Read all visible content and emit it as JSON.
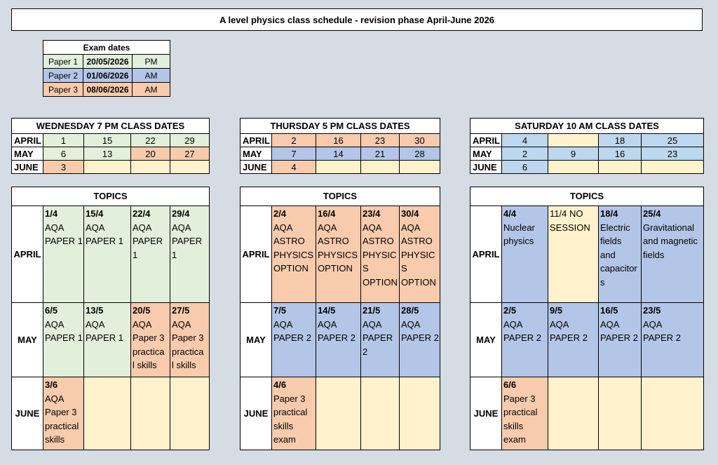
{
  "title": "A level physics class schedule - revision phase April-June 2026",
  "colors": {
    "green": "#e2efda",
    "orange": "#f8cbad",
    "blue": "#b4c6e7",
    "light_blue": "#bdd7ee",
    "yellow": "#fff2cc"
  },
  "exam": {
    "header": "Exam dates",
    "rows": [
      {
        "paper": "Paper 1",
        "date": "20/05/2026",
        "time": "PM"
      },
      {
        "paper": "Paper 2",
        "date": "01/06/2026",
        "time": "AM"
      },
      {
        "paper": "Paper 3",
        "date": "08/06/2026",
        "time": "AM"
      }
    ]
  },
  "wed": {
    "header": "WEDNESDAY 7 PM CLASS DATES",
    "months": [
      "APRIL",
      "MAY",
      "JUNE"
    ],
    "rows": [
      [
        "1",
        "15",
        "22",
        "29"
      ],
      [
        "6",
        "13",
        "20",
        "27"
      ],
      [
        "3",
        "",
        "",
        ""
      ]
    ],
    "topics_header": "TOPICS",
    "topics": [
      [
        {
          "d": "1/4",
          "t": "AQA\nPAPER 1"
        },
        {
          "d": "15/4",
          "t": "AQA\nPAPER 1"
        },
        {
          "d": "22/4",
          "t": "AQA\nPAPER 1"
        },
        {
          "d": "29/4",
          "t": "AQA\nPAPER 1"
        }
      ],
      [
        {
          "d": "6/5",
          "t": "AQA\nPAPER 1"
        },
        {
          "d": "13/5",
          "t": "AQA\nPAPER 1"
        },
        {
          "d": "20/5",
          "t": "AQA\nPaper 3\npractica\nl skills"
        },
        {
          "d": "27/5",
          "t": "AQA\nPaper 3\npractica\nl skills"
        }
      ],
      [
        {
          "d": "3/6",
          "t": "AQA\nPaper 3\npractical\nskills"
        },
        {
          "d": "",
          "t": ""
        },
        {
          "d": "",
          "t": ""
        },
        {
          "d": "",
          "t": ""
        }
      ]
    ]
  },
  "thu": {
    "header": "THURSDAY 5 PM CLASS DATES",
    "months": [
      "APRIL",
      "MAY",
      "JUNE"
    ],
    "rows": [
      [
        "2",
        "16",
        "23",
        "30"
      ],
      [
        "7",
        "14",
        "21",
        "28"
      ],
      [
        "4",
        "",
        "",
        ""
      ]
    ],
    "topics_header": "TOPICS",
    "topics": [
      [
        {
          "d": "2/4",
          "t": "AQA\nASTRO\nPHYSICS\nOPTION"
        },
        {
          "d": "16/4",
          "t": "AQA\nASTRO\nPHYSICS\nOPTION"
        },
        {
          "d": "23/4",
          "t": "AQA\nASTRO\nPHYSICS\nOPTION"
        },
        {
          "d": "30/4",
          "t": "AQA\nASTRO\nPHYSICS\nOPTION"
        }
      ],
      [
        {
          "d": "7/5",
          "t": "AQA\nPAPER 2"
        },
        {
          "d": "14/5",
          "t": "AQA\nPAPER 2"
        },
        {
          "d": "21/5",
          "t": "AQA\nPAPER 2"
        },
        {
          "d": "28/5",
          "t": "AQA\nPAPER 2"
        }
      ],
      [
        {
          "d": "4/6",
          "t": "Paper 3\npractical\nskills\nexam"
        },
        {
          "d": "",
          "t": ""
        },
        {
          "d": "",
          "t": ""
        },
        {
          "d": "",
          "t": ""
        }
      ]
    ]
  },
  "sat": {
    "header": "SATURDAY 10 AM CLASS DATES",
    "months": [
      "APRIL",
      "MAY",
      "JUNE"
    ],
    "rows": [
      [
        "4",
        "",
        "18",
        "25"
      ],
      [
        "2",
        "9",
        "16",
        "23"
      ],
      [
        "6",
        "",
        "",
        ""
      ]
    ],
    "topics_header": "TOPICS",
    "topics": [
      [
        {
          "d": "4/4",
          "t": "Nuclear\nphysics"
        },
        {
          "d": "",
          "t": "11/4 NO\nSESSION"
        },
        {
          "d": "18/4",
          "t": "Electric\nfields\nand\ncapacitor\ns"
        },
        {
          "d": "25/4",
          "t": "Gravitational\nand magnetic\nfields"
        }
      ],
      [
        {
          "d": "2/5",
          "t": "AQA\nPAPER 2"
        },
        {
          "d": "9/5",
          "t": "AQA\nPAPER 2"
        },
        {
          "d": "16/5",
          "t": "AQA\nPAPER 2"
        },
        {
          "d": "23/5",
          "t": "AQA\nPAPER 2"
        }
      ],
      [
        {
          "d": "6/6",
          "t": "Paper 3\npractical\nskills\nexam"
        },
        {
          "d": "",
          "t": ""
        },
        {
          "d": "",
          "t": ""
        },
        {
          "d": "",
          "t": ""
        }
      ]
    ]
  }
}
